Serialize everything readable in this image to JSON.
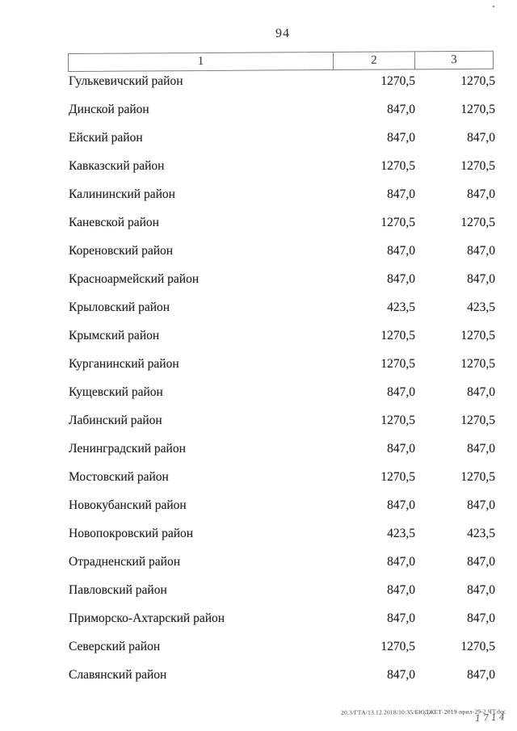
{
  "page": {
    "number": "94"
  },
  "table": {
    "headers": [
      "1",
      "2",
      "3"
    ],
    "rows": [
      {
        "name": "Гулькевичский район",
        "col2": "1270,5",
        "col3": "1270,5"
      },
      {
        "name": "Динской район",
        "col2": "847,0",
        "col3": "1270,5"
      },
      {
        "name": "Ейский район",
        "col2": "847,0",
        "col3": "847,0"
      },
      {
        "name": "Кавказский район",
        "col2": "1270,5",
        "col3": "1270,5"
      },
      {
        "name": "Калининский район",
        "col2": "847,0",
        "col3": "847,0"
      },
      {
        "name": "Каневской район",
        "col2": "1270,5",
        "col3": "1270,5"
      },
      {
        "name": "Кореновский район",
        "col2": "847,0",
        "col3": "847,0"
      },
      {
        "name": "Красноармейский район",
        "col2": "847,0",
        "col3": "847,0"
      },
      {
        "name": "Крыловский район",
        "col2": "423,5",
        "col3": "423,5"
      },
      {
        "name": "Крымский район",
        "col2": "1270,5",
        "col3": "1270,5"
      },
      {
        "name": "Курганинский район",
        "col2": "1270,5",
        "col3": "1270,5"
      },
      {
        "name": "Кущевский район",
        "col2": "847,0",
        "col3": "847,0"
      },
      {
        "name": "Лабинский район",
        "col2": "1270,5",
        "col3": "1270,5"
      },
      {
        "name": "Ленинградский район",
        "col2": "847,0",
        "col3": "847,0"
      },
      {
        "name": "Мостовский район",
        "col2": "1270,5",
        "col3": "1270,5"
      },
      {
        "name": "Новокубанский район",
        "col2": "847,0",
        "col3": "847,0"
      },
      {
        "name": "Новопокровский район",
        "col2": "423,5",
        "col3": "423,5"
      },
      {
        "name": "Отрадненский район",
        "col2": "847,0",
        "col3": "847,0"
      },
      {
        "name": "Павловский район",
        "col2": "847,0",
        "col3": "847,0"
      },
      {
        "name": "Приморско-Ахтарский район",
        "col2": "847,0",
        "col3": "847,0"
      },
      {
        "name": "Северский район",
        "col2": "1270,5",
        "col3": "1270,5"
      },
      {
        "name": "Славянский район",
        "col2": "847,0",
        "col3": "847,0"
      }
    ]
  },
  "footer": {
    "file_label": "20.3/ГТА/13.12.2018/10:35/БЮДЖЕТ-2019-прил-29-2 ЧТ.doc",
    "handwritten_mark": "1714"
  }
}
